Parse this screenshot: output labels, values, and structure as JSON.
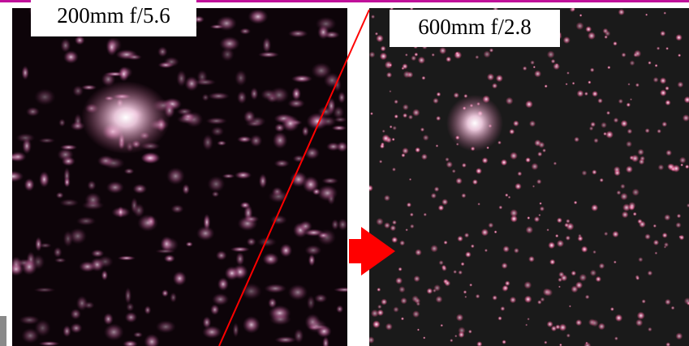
{
  "left_panel": {
    "label": "200mm f/5.6"
  },
  "right_panel": {
    "label": "600mm f/2.8"
  }
}
